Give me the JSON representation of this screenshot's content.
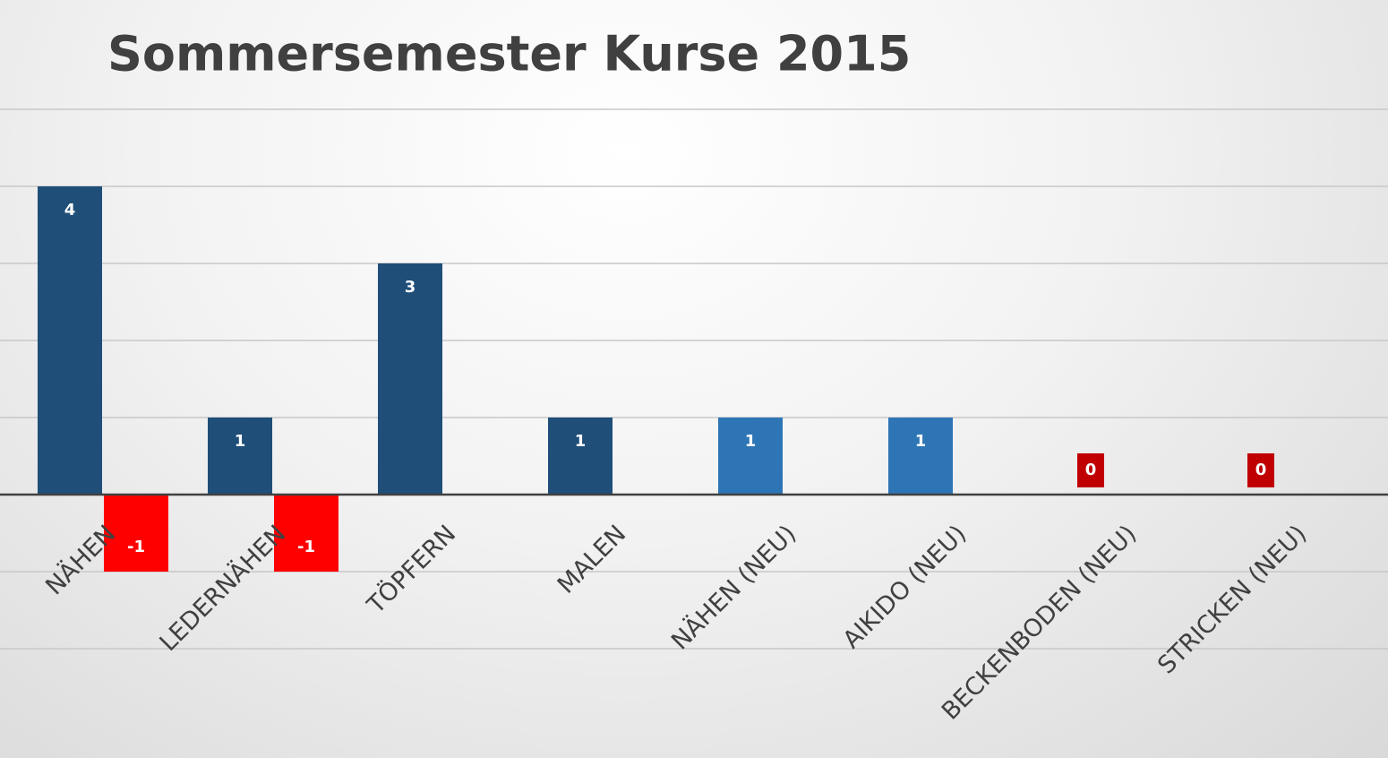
{
  "chart_data": {
    "type": "bar",
    "title": "Sommersemester Kurse 2015",
    "categories": [
      "NÄHEN",
      "LEDERNÄHEN",
      "TÖPFERN",
      "MALEN",
      "NÄHEN (NEU)",
      "AIKIDO (NEU)",
      "BECKENBODEN (NEU)",
      "STRICKEN (NEU)"
    ],
    "series": [
      {
        "colors": [
          "#1f4e79",
          "#1f4e79",
          "#1f4e79",
          "#1f4e79",
          "#2e75b6",
          "#2e75b6",
          "#c00000",
          "#c00000"
        ],
        "values": [
          4,
          1,
          3,
          1,
          1,
          1,
          0,
          0
        ]
      },
      {
        "colors": [
          "#ff0000",
          "#ff0000",
          null,
          null,
          null,
          null,
          null,
          null
        ],
        "values": [
          -1,
          -1,
          null,
          null,
          null,
          null,
          null,
          null
        ]
      }
    ],
    "ylim": [
      -2,
      5
    ],
    "yticks": [
      -2,
      -1,
      0,
      1,
      2,
      3,
      4,
      5
    ],
    "grid": true
  }
}
